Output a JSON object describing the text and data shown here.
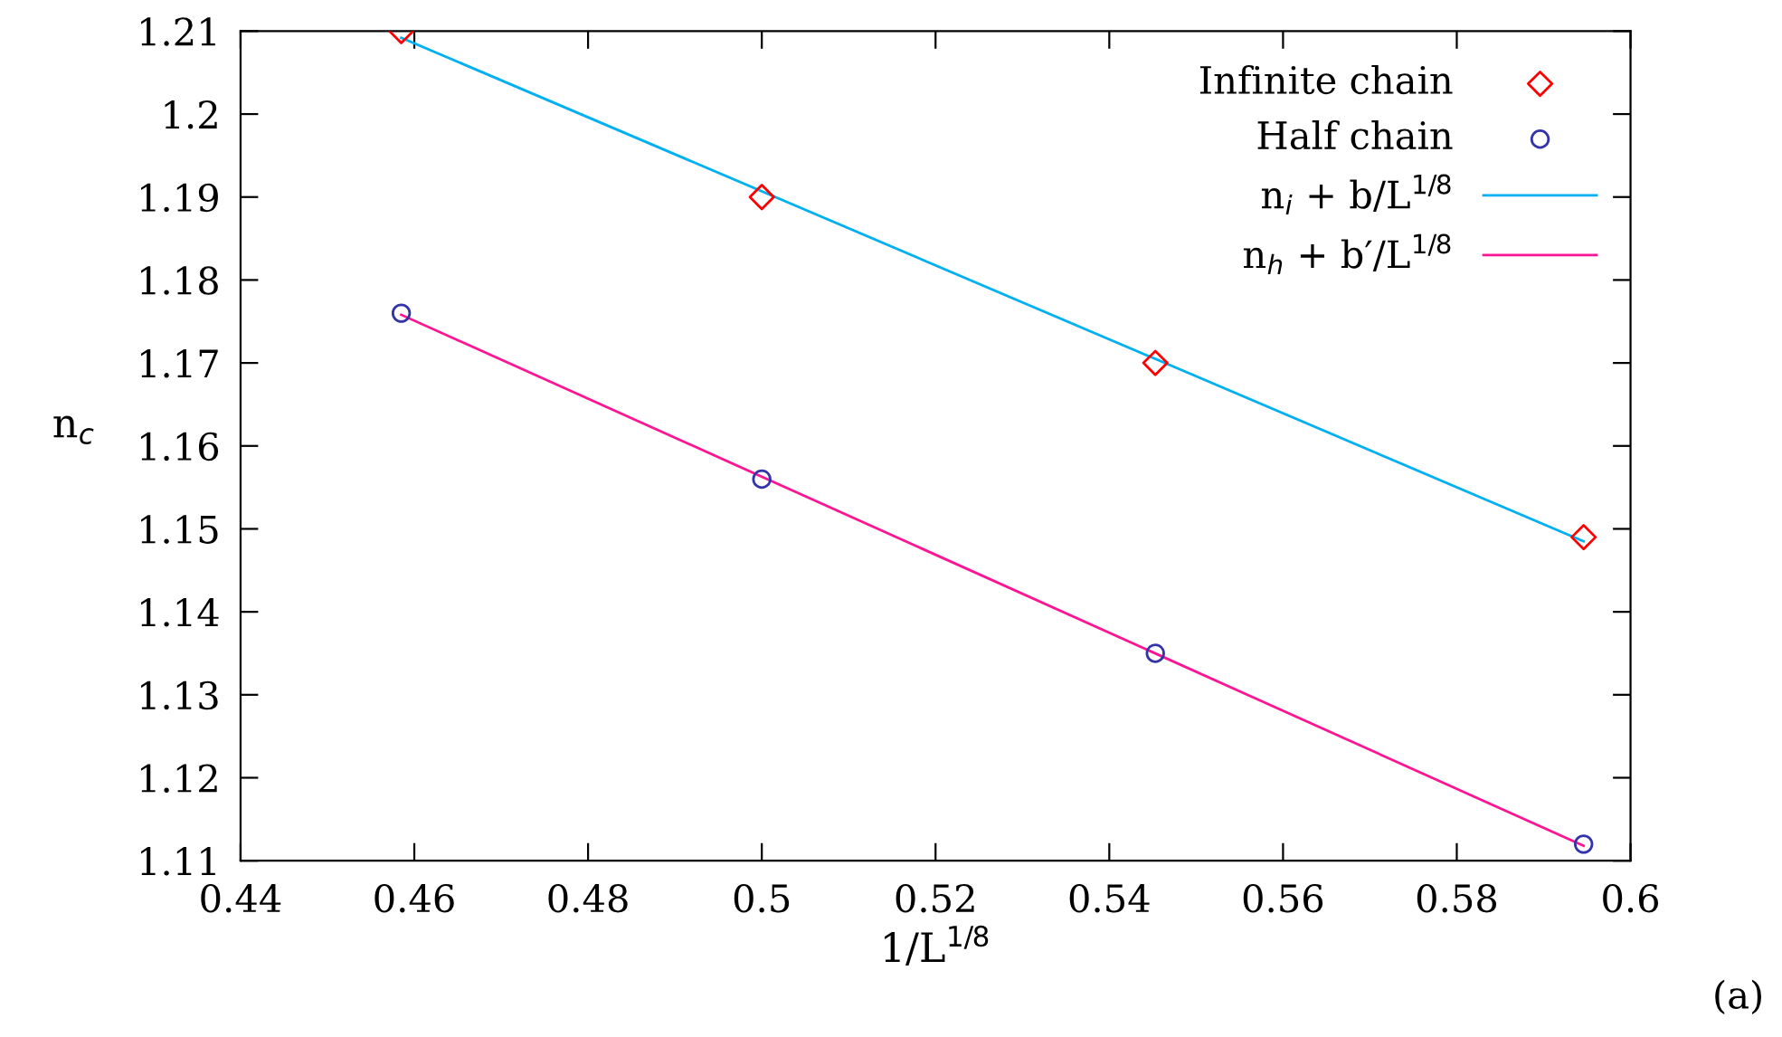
{
  "chart_data": {
    "type": "scatter",
    "xlabel": "1/L$^{1/8}$",
    "ylabel": "n$_{c}$",
    "xlim": [
      0.44,
      0.6
    ],
    "xticks": [
      0.44,
      0.46,
      0.48,
      0.5,
      0.52,
      0.54,
      0.56,
      0.58,
      0.6
    ],
    "ylim": [
      1.11,
      1.21
    ],
    "yticks": [
      1.11,
      1.12,
      1.13,
      1.14,
      1.15,
      1.16,
      1.17,
      1.18,
      1.19,
      1.2,
      1.21
    ],
    "grid": false,
    "legend": "top right",
    "series": [
      {
        "name": "Infinite chain",
        "marker": "diamond",
        "color": "#ff0000",
        "x": [
          0.4585,
          0.5,
          0.5453,
          0.5946
        ],
        "values": [
          1.21,
          1.19,
          1.17,
          1.149
        ]
      },
      {
        "name": "Half chain",
        "marker": "circle",
        "color": "#3333aa",
        "x": [
          0.4585,
          0.5,
          0.5453,
          0.5946
        ],
        "values": [
          1.176,
          1.156,
          1.135,
          1.112
        ]
      },
      {
        "name": "n$_{i}$ + b/L$^{1/8}$",
        "type": "line",
        "marker": "none",
        "line_style": "solid",
        "color": "#00b0f0",
        "x": [
          0.4585,
          0.5946
        ],
        "values": [
          1.2092,
          1.1485
        ]
      },
      {
        "name": "n$_{h}$ + b′/L$^{1/8}$",
        "type": "line",
        "marker": "none",
        "line_style": "solid",
        "color": "#ff1493",
        "x": [
          0.4585,
          0.5946
        ],
        "values": [
          1.1758,
          1.1118
        ]
      }
    ],
    "annotations": [
      "(a)"
    ]
  }
}
